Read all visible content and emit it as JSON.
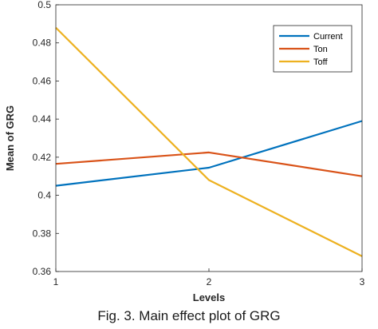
{
  "caption": "Fig. 3. Main effect plot of GRG",
  "chart_data": {
    "type": "line",
    "title": "",
    "xlabel": "Levels",
    "ylabel": "Mean of GRG",
    "x": [
      1,
      2,
      3
    ],
    "xticks": [
      "1",
      "2",
      "3"
    ],
    "xlim": [
      1,
      3
    ],
    "ylim": [
      0.36,
      0.5
    ],
    "yticks": [
      "0.36",
      "0.38",
      "0.4",
      "0.42",
      "0.44",
      "0.46",
      "0.48",
      "0.5"
    ],
    "grid": false,
    "legend": "top-right",
    "series": [
      {
        "name": "Current",
        "values": [
          0.405,
          0.4145,
          0.439
        ],
        "color": "#0072BD"
      },
      {
        "name": "Ton",
        "values": [
          0.4165,
          0.4225,
          0.41
        ],
        "color": "#D95319"
      },
      {
        "name": "Toff",
        "values": [
          0.488,
          0.408,
          0.368
        ],
        "color": "#EDB120"
      }
    ]
  }
}
